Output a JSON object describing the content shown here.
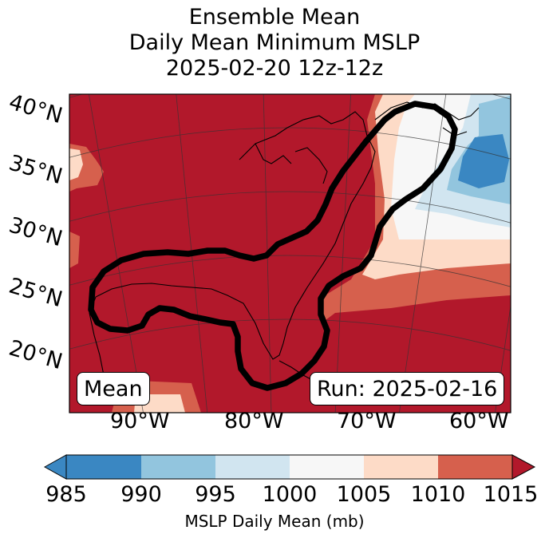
{
  "title": {
    "line1": "Ensemble Mean",
    "line2": "Daily Mean Minimum MSLP",
    "line3": "2025-02-20 12z-12z"
  },
  "map": {
    "lat_labels": [
      "40°N",
      "35°N",
      "30°N",
      "25°N",
      "20°N"
    ],
    "lon_labels": [
      "90°W",
      "80°W",
      "70°W",
      "60°W"
    ],
    "left_box": "Mean",
    "right_box": "Run: 2025-02-16",
    "region": "Eastern United States, Gulf of Mexico and Western Atlantic",
    "highlight_contour": "black outline enclosing the Gulf of Mexico and US East Coast"
  },
  "colorbar": {
    "label": "MSLP Daily Mean (mb)",
    "ticks": [
      "985",
      "990",
      "995",
      "1000",
      "1005",
      "1010",
      "1015"
    ],
    "colors": [
      "#3a87c2",
      "#3a87c2",
      "#92c5de",
      "#d1e5f0",
      "#f7f7f7",
      "#fddbc7",
      "#d6604d",
      "#b2182b"
    ],
    "extend": "both"
  },
  "palette": {
    "c985": "#3a87c2",
    "c990": "#92c5de",
    "c995": "#d1e5f0",
    "c1000": "#f7f7f7",
    "c1005": "#fddbc7",
    "c1010": "#d6604d",
    "c1015": "#b2182b"
  }
}
